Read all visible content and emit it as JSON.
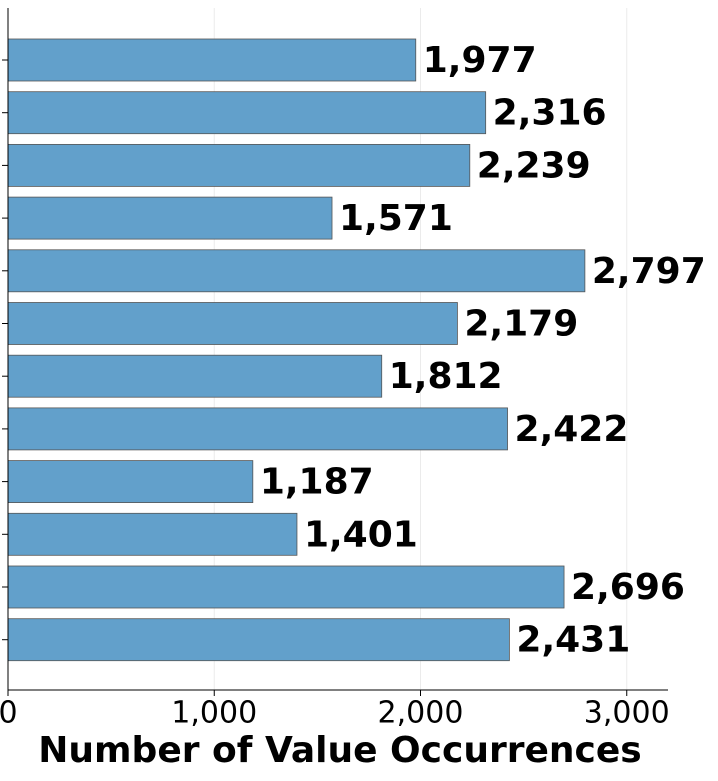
{
  "chart_data": {
    "type": "bar",
    "orientation": "horizontal",
    "x_label": "Number of Value Occurrences",
    "categories": [
      null,
      null,
      null,
      null,
      null,
      null,
      null,
      null,
      null,
      null,
      null,
      null
    ],
    "values": [
      1977,
      2316,
      2239,
      1571,
      2797,
      2179,
      1812,
      2422,
      1187,
      1401,
      2696,
      2431
    ],
    "value_labels": [
      "1,977",
      "2,316",
      "2,239",
      "1,571",
      "2,797",
      "2,179",
      "1,812",
      "2,422",
      "1,187",
      "1,401",
      "2,696",
      "2,431"
    ],
    "color": "#62a0cb",
    "xlim": [
      0,
      3200
    ],
    "xticks": [
      0,
      {
        "value": 1000,
        "label": "1,000"
      },
      {
        "value": 2000,
        "label": "2,000"
      },
      {
        "value": 3000,
        "label": "3,000"
      }
    ],
    "grid": true
  }
}
